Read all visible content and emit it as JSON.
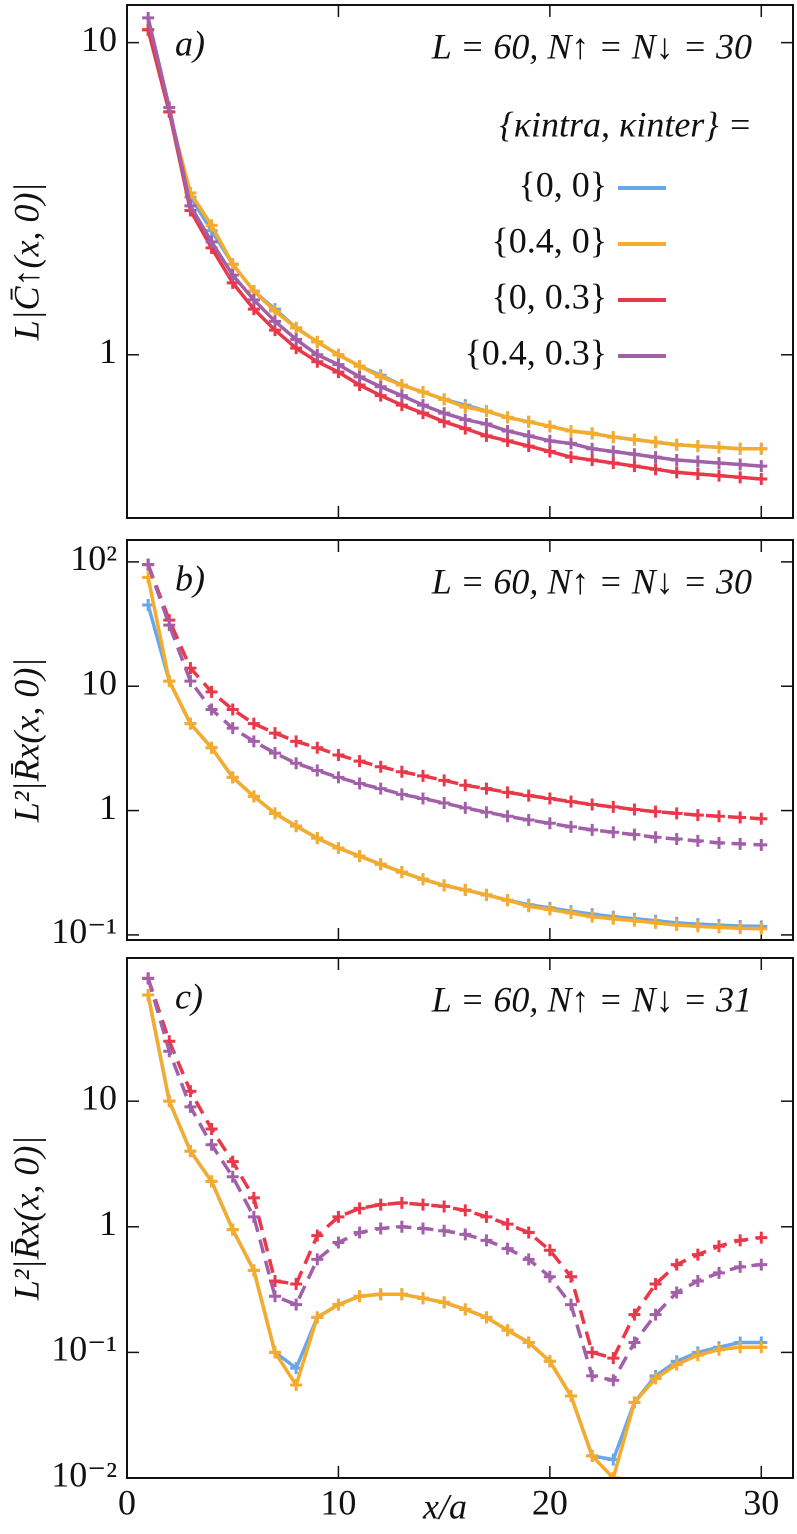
{
  "chart_data": [
    {
      "type": "line",
      "panel_label": "a)",
      "annotation": "L = 60,   N↑ = N↓ = 30",
      "y_label": "L|C̄↑(x, 0)|",
      "log_y": true,
      "xlim": [
        0,
        31.5
      ],
      "xticks": [
        0,
        10,
        20,
        30
      ],
      "ylim": [
        0.3,
        13.2
      ],
      "yticks": [
        1,
        10
      ],
      "legend": true,
      "legend_title": "{κintra, κinter} =",
      "x": [
        1,
        2,
        3,
        4,
        5,
        6,
        7,
        8,
        9,
        10,
        11,
        12,
        13,
        14,
        15,
        16,
        17,
        18,
        19,
        20,
        21,
        22,
        23,
        24,
        25,
        26,
        27,
        28,
        29,
        30
      ],
      "series": [
        {
          "name": "{0, 0}",
          "color": "#6aa6ea",
          "dashed": false,
          "values": [
            11,
            6,
            3.2,
            2.5,
            1.95,
            1.6,
            1.4,
            1.22,
            1.1,
            1.0,
            0.92,
            0.86,
            0.8,
            0.76,
            0.72,
            0.69,
            0.66,
            0.63,
            0.61,
            0.59,
            0.57,
            0.56,
            0.545,
            0.535,
            0.525,
            0.515,
            0.51,
            0.505,
            0.5,
            0.5
          ]
        },
        {
          "name": "{0.4, 0}",
          "color": "#f5ac2c",
          "dashed": false,
          "values": [
            11,
            6,
            3.3,
            2.6,
            1.95,
            1.6,
            1.38,
            1.22,
            1.1,
            1.0,
            0.92,
            0.85,
            0.8,
            0.76,
            0.72,
            0.68,
            0.66,
            0.63,
            0.61,
            0.59,
            0.57,
            0.56,
            0.545,
            0.535,
            0.525,
            0.515,
            0.51,
            0.505,
            0.5,
            0.5
          ]
        },
        {
          "name": "{0, 0.3}",
          "color": "#e8384a",
          "dashed": false,
          "values": [
            11,
            6,
            2.9,
            2.2,
            1.7,
            1.4,
            1.2,
            1.05,
            0.95,
            0.88,
            0.8,
            0.74,
            0.69,
            0.65,
            0.61,
            0.58,
            0.55,
            0.53,
            0.51,
            0.49,
            0.47,
            0.46,
            0.45,
            0.44,
            0.43,
            0.42,
            0.415,
            0.41,
            0.405,
            0.4
          ]
        },
        {
          "name": "{0.4, 0.3}",
          "color": "#a160a8",
          "dashed": false,
          "values": [
            12,
            6.2,
            3.0,
            2.3,
            1.8,
            1.5,
            1.28,
            1.12,
            1.0,
            0.93,
            0.85,
            0.79,
            0.74,
            0.69,
            0.65,
            0.62,
            0.6,
            0.57,
            0.55,
            0.53,
            0.52,
            0.5,
            0.49,
            0.48,
            0.47,
            0.46,
            0.455,
            0.45,
            0.445,
            0.44
          ]
        }
      ]
    },
    {
      "type": "line",
      "panel_label": "b)",
      "annotation": "L = 60,   N↑ = N↓ = 30",
      "y_label": "L²|R̄x(x, 0)|",
      "log_y": true,
      "xlim": [
        0,
        31.5
      ],
      "xticks": [
        0,
        10,
        20,
        30
      ],
      "ylim": [
        0.091,
        150
      ],
      "yticks": [
        {
          "value": 0.1,
          "label": "10⁻¹"
        },
        1,
        10,
        {
          "value": 100,
          "label": "10²"
        }
      ],
      "x": [
        1,
        2,
        3,
        4,
        5,
        6,
        7,
        8,
        9,
        10,
        11,
        12,
        13,
        14,
        15,
        16,
        17,
        18,
        19,
        20,
        21,
        22,
        23,
        24,
        25,
        26,
        27,
        28,
        29,
        30
      ],
      "series": [
        {
          "color": "#6aa6ea",
          "dashed": false,
          "values": [
            45,
            11,
            5,
            3.2,
            1.85,
            1.3,
            0.95,
            0.75,
            0.6,
            0.5,
            0.43,
            0.37,
            0.32,
            0.28,
            0.25,
            0.23,
            0.21,
            0.19,
            0.175,
            0.165,
            0.155,
            0.147,
            0.14,
            0.135,
            0.13,
            0.125,
            0.122,
            0.12,
            0.118,
            0.117
          ]
        },
        {
          "color": "#f5ac2c",
          "dashed": false,
          "values": [
            75,
            11,
            5,
            3.2,
            1.85,
            1.3,
            0.95,
            0.75,
            0.6,
            0.5,
            0.43,
            0.37,
            0.32,
            0.28,
            0.25,
            0.23,
            0.21,
            0.19,
            0.17,
            0.16,
            0.15,
            0.14,
            0.135,
            0.13,
            0.125,
            0.12,
            0.117,
            0.115,
            0.113,
            0.112
          ]
        },
        {
          "color": "#e8384a",
          "dashed": true,
          "values": [
            95,
            34,
            14,
            9,
            6.5,
            5,
            4.2,
            3.6,
            3.2,
            2.8,
            2.5,
            2.25,
            2.05,
            1.9,
            1.75,
            1.6,
            1.5,
            1.4,
            1.32,
            1.25,
            1.18,
            1.12,
            1.07,
            1.02,
            0.98,
            0.95,
            0.92,
            0.9,
            0.88,
            0.86
          ]
        },
        {
          "color": "#a160a8",
          "dashed": true,
          "values": [
            95,
            31,
            11,
            6.5,
            4.6,
            3.6,
            2.9,
            2.4,
            2.1,
            1.85,
            1.65,
            1.5,
            1.35,
            1.25,
            1.15,
            1.05,
            0.97,
            0.9,
            0.84,
            0.79,
            0.74,
            0.7,
            0.67,
            0.64,
            0.61,
            0.59,
            0.57,
            0.55,
            0.54,
            0.53
          ]
        }
      ]
    },
    {
      "type": "line",
      "panel_label": "c)",
      "annotation": "L = 60,   N↑ = N↓ = 31",
      "y_label": "L²|R̄x(x, 0)|",
      "x_label": "x/a",
      "log_y": true,
      "xlim": [
        0,
        31.5
      ],
      "xticks": [
        0,
        10,
        20,
        30
      ],
      "ylim": [
        0.01,
        138
      ],
      "yticks": [
        {
          "value": 0.01,
          "label": "10⁻²"
        },
        {
          "value": 0.1,
          "label": "10⁻¹"
        },
        1,
        10
      ],
      "x": [
        1,
        2,
        3,
        4,
        5,
        6,
        7,
        8,
        9,
        10,
        11,
        12,
        13,
        14,
        15,
        16,
        17,
        18,
        19,
        20,
        21,
        22,
        23,
        24,
        25,
        26,
        27,
        28,
        29,
        30
      ],
      "series": [
        {
          "color": "#6aa6ea",
          "dashed": false,
          "values": [
            70,
            10,
            4,
            2.3,
            0.95,
            0.45,
            0.1,
            0.075,
            0.19,
            0.24,
            0.28,
            0.29,
            0.29,
            0.27,
            0.25,
            0.22,
            0.19,
            0.15,
            0.12,
            0.085,
            0.045,
            0.015,
            0.014,
            0.04,
            0.065,
            0.085,
            0.1,
            0.11,
            0.12,
            0.12
          ]
        },
        {
          "color": "#f5ac2c",
          "dashed": false,
          "values": [
            70,
            10,
            4,
            2.3,
            0.95,
            0.45,
            0.1,
            0.055,
            0.19,
            0.24,
            0.28,
            0.29,
            0.29,
            0.27,
            0.25,
            0.22,
            0.19,
            0.15,
            0.12,
            0.085,
            0.045,
            0.015,
            0.01,
            0.04,
            0.062,
            0.08,
            0.095,
            0.105,
            0.11,
            0.11
          ]
        },
        {
          "color": "#e8384a",
          "dashed": true,
          "values": [
            95,
            30,
            12,
            6,
            3.3,
            1.7,
            0.37,
            0.35,
            0.85,
            1.2,
            1.4,
            1.5,
            1.55,
            1.5,
            1.45,
            1.35,
            1.2,
            1.05,
            0.9,
            0.65,
            0.4,
            0.1,
            0.09,
            0.2,
            0.35,
            0.5,
            0.6,
            0.7,
            0.78,
            0.82
          ]
        },
        {
          "color": "#a160a8",
          "dashed": true,
          "values": [
            95,
            25,
            9,
            4.5,
            2.5,
            1.2,
            0.28,
            0.24,
            0.55,
            0.75,
            0.9,
            0.97,
            1.0,
            0.97,
            0.93,
            0.87,
            0.78,
            0.67,
            0.55,
            0.4,
            0.24,
            0.065,
            0.06,
            0.12,
            0.2,
            0.3,
            0.37,
            0.43,
            0.48,
            0.5
          ]
        }
      ]
    }
  ]
}
